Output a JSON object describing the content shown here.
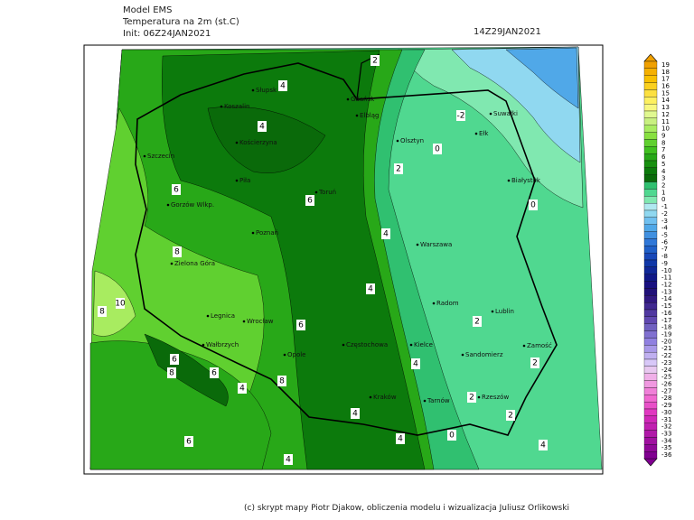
{
  "header": {
    "model": "Model EMS",
    "variable": "Temperatura na 2m (st.C)",
    "init": "Init: 06Z24JAN2021",
    "valid": "14Z29JAN2021"
  },
  "footer": "(c) skrypt mapy Piotr Djakow, obliczenia modelu i wizualizacja Juliusz Orlikowski",
  "map": {
    "cities": [
      "Słupsk",
      "Koszalin",
      "Gdańsk",
      "Elbląg",
      "Kościerzyna",
      "Olsztyn",
      "Suwałki",
      "Ełk",
      "Szczecin",
      "Piła",
      "Toruń",
      "Białystok",
      "Gorzów Wlkp.",
      "Poznań",
      "Warszawa",
      "Zielona Góra",
      "Radom",
      "Lublin",
      "Legnica",
      "Wrocław",
      "Kielce",
      "Częstochowa",
      "Wałbrzych",
      "Opole",
      "Sandomierz",
      "Zamość",
      "Kraków",
      "Tarnów",
      "Rzeszów"
    ],
    "contour_labels": [
      "2",
      "4",
      "-2",
      "4",
      "0",
      "2",
      "6",
      "6",
      "0",
      "8",
      "4",
      "10",
      "8",
      "4",
      "2",
      "6",
      "6",
      "2",
      "8",
      "4",
      "4",
      "2",
      "6",
      "4",
      "8",
      "6",
      "4",
      "4",
      "0",
      "4",
      "2"
    ]
  },
  "colorbar": {
    "levels": [
      19,
      18,
      17,
      16,
      15,
      14,
      13,
      12,
      11,
      10,
      9,
      8,
      7,
      6,
      5,
      4,
      3,
      2,
      1,
      0,
      -1,
      -2,
      -3,
      -4,
      -5,
      -6,
      -7,
      -8,
      -9,
      -10,
      -11,
      -12,
      -13,
      -14,
      -15,
      -16,
      -17,
      -18,
      -19,
      -20,
      -21,
      -22,
      -23,
      -24,
      -25,
      -26,
      -27,
      -28,
      -29,
      -30,
      -31,
      -32,
      -33,
      -34,
      -35,
      -36
    ],
    "colors": [
      "#f0a000",
      "#f5b000",
      "#f8c000",
      "#fad020",
      "#fce040",
      "#fdf060",
      "#f8f880",
      "#e0f890",
      "#c8f080",
      "#a8ec60",
      "#88e040",
      "#60d030",
      "#40c020",
      "#28a818",
      "#189010",
      "#0c7a0c",
      "#0a6a0a",
      "#30c070",
      "#50d890",
      "#80e8b0",
      "#b0e8f0",
      "#90d8f0",
      "#70c0f0",
      "#50a8e8",
      "#4090e0",
      "#3078d8",
      "#2060c8",
      "#1848b8",
      "#1038a8",
      "#102898",
      "#101888",
      "#181080",
      "#201078",
      "#301880",
      "#402890",
      "#5038a0",
      "#6048b0",
      "#7060c0",
      "#8070d0",
      "#9080e0",
      "#a898e8",
      "#c0b0f0",
      "#d8c8f8",
      "#e8c8f0",
      "#f0b0e8",
      "#f098e0",
      "#f080d8",
      "#f068d0",
      "#e850c8",
      "#e038c0",
      "#d028b8",
      "#c020b0",
      "#b018a8",
      "#a010a0",
      "#900898",
      "#800090"
    ]
  }
}
